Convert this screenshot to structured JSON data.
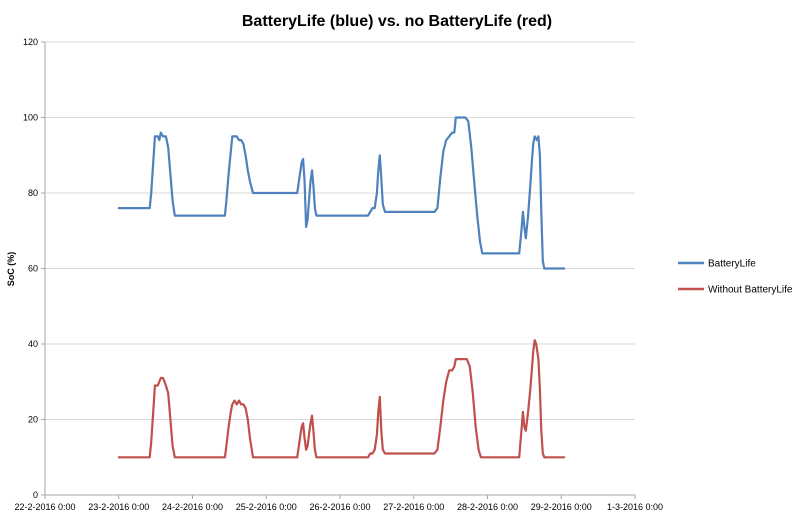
{
  "page": {
    "background": "#FFFFFF"
  },
  "chart_data": {
    "type": "line",
    "title": "BatteryLife (blue) vs. no BatteryLife (red)",
    "ylabel": "SoC (%)",
    "xlabel": "",
    "ylim": [
      0,
      120
    ],
    "y_ticks": [
      0,
      20,
      40,
      60,
      80,
      100,
      120
    ],
    "x_domain": [
      0,
      8
    ],
    "x_ticks": [
      {
        "pos": 0,
        "label": "22-2-2016 0:00"
      },
      {
        "pos": 1,
        "label": "23-2-2016 0:00"
      },
      {
        "pos": 2,
        "label": "24-2-2016 0:00"
      },
      {
        "pos": 3,
        "label": "25-2-2016 0:00"
      },
      {
        "pos": 4,
        "label": "26-2-2016 0:00"
      },
      {
        "pos": 5,
        "label": "27-2-2016 0:00"
      },
      {
        "pos": 6,
        "label": "28-2-2016 0:00"
      },
      {
        "pos": 7,
        "label": "29-2-2016 0:00"
      },
      {
        "pos": 8,
        "label": "1-3-2016 0:00"
      }
    ],
    "grid": true,
    "legend_position": "right",
    "colors": {
      "grid": "#D9D9D9",
      "axis": "#A6A6A6",
      "text": "#000000",
      "blue_series": "#4F81BD",
      "red_series": "#C0504D"
    },
    "series": [
      {
        "name": "BatteryLife",
        "color": "#4F81BD",
        "points": [
          [
            1.0,
            76
          ],
          [
            1.42,
            76
          ],
          [
            1.44,
            80
          ],
          [
            1.46,
            86
          ],
          [
            1.48,
            92
          ],
          [
            1.49,
            95
          ],
          [
            1.53,
            95
          ],
          [
            1.55,
            94
          ],
          [
            1.57,
            96
          ],
          [
            1.6,
            95
          ],
          [
            1.64,
            95
          ],
          [
            1.67,
            92
          ],
          [
            1.7,
            85
          ],
          [
            1.73,
            78
          ],
          [
            1.76,
            74
          ],
          [
            2.44,
            74
          ],
          [
            2.46,
            78
          ],
          [
            2.49,
            85
          ],
          [
            2.52,
            91
          ],
          [
            2.54,
            95
          ],
          [
            2.6,
            95
          ],
          [
            2.63,
            94
          ],
          [
            2.66,
            94
          ],
          [
            2.69,
            93
          ],
          [
            2.72,
            90
          ],
          [
            2.75,
            86
          ],
          [
            2.78,
            83
          ],
          [
            2.82,
            80
          ],
          [
            3.42,
            80
          ],
          [
            3.45,
            84
          ],
          [
            3.48,
            88
          ],
          [
            3.5,
            89
          ],
          [
            3.52,
            83
          ],
          [
            3.54,
            71
          ],
          [
            3.56,
            73
          ],
          [
            3.58,
            78
          ],
          [
            3.6,
            83
          ],
          [
            3.62,
            86
          ],
          [
            3.64,
            82
          ],
          [
            3.66,
            76
          ],
          [
            3.68,
            74
          ],
          [
            4.38,
            74
          ],
          [
            4.41,
            75
          ],
          [
            4.44,
            76
          ],
          [
            4.47,
            76
          ],
          [
            4.5,
            80
          ],
          [
            4.52,
            86
          ],
          [
            4.54,
            90
          ],
          [
            4.56,
            84
          ],
          [
            4.58,
            77
          ],
          [
            4.61,
            75
          ],
          [
            5.28,
            75
          ],
          [
            5.32,
            76
          ],
          [
            5.36,
            84
          ],
          [
            5.4,
            91
          ],
          [
            5.44,
            94
          ],
          [
            5.48,
            95
          ],
          [
            5.52,
            96
          ],
          [
            5.55,
            96
          ],
          [
            5.57,
            100
          ],
          [
            5.7,
            100
          ],
          [
            5.74,
            99
          ],
          [
            5.78,
            92
          ],
          [
            5.82,
            83
          ],
          [
            5.86,
            74
          ],
          [
            5.9,
            67
          ],
          [
            5.93,
            64
          ],
          [
            6.43,
            64
          ],
          [
            6.46,
            70
          ],
          [
            6.48,
            75
          ],
          [
            6.5,
            71
          ],
          [
            6.52,
            68
          ],
          [
            6.55,
            74
          ],
          [
            6.58,
            82
          ],
          [
            6.6,
            88
          ],
          [
            6.62,
            93
          ],
          [
            6.64,
            95
          ],
          [
            6.67,
            94
          ],
          [
            6.69,
            95
          ],
          [
            6.71,
            90
          ],
          [
            6.73,
            75
          ],
          [
            6.75,
            62
          ],
          [
            6.77,
            60
          ],
          [
            7.04,
            60
          ]
        ]
      },
      {
        "name": "Without BatteryLife",
        "color": "#C0504D",
        "points": [
          [
            1.0,
            10
          ],
          [
            1.42,
            10
          ],
          [
            1.44,
            14
          ],
          [
            1.46,
            20
          ],
          [
            1.48,
            26
          ],
          [
            1.49,
            29
          ],
          [
            1.53,
            29
          ],
          [
            1.55,
            30
          ],
          [
            1.57,
            31
          ],
          [
            1.6,
            31
          ],
          [
            1.62,
            30
          ],
          [
            1.64,
            29
          ],
          [
            1.67,
            27
          ],
          [
            1.7,
            20
          ],
          [
            1.73,
            13
          ],
          [
            1.76,
            10
          ],
          [
            2.44,
            10
          ],
          [
            2.46,
            13
          ],
          [
            2.49,
            18
          ],
          [
            2.52,
            22
          ],
          [
            2.54,
            24
          ],
          [
            2.57,
            25
          ],
          [
            2.6,
            24
          ],
          [
            2.63,
            25
          ],
          [
            2.66,
            24
          ],
          [
            2.69,
            24
          ],
          [
            2.72,
            23
          ],
          [
            2.75,
            20
          ],
          [
            2.78,
            15
          ],
          [
            2.82,
            10
          ],
          [
            3.42,
            10
          ],
          [
            3.45,
            14
          ],
          [
            3.48,
            18
          ],
          [
            3.5,
            19
          ],
          [
            3.52,
            15
          ],
          [
            3.54,
            12
          ],
          [
            3.56,
            13
          ],
          [
            3.58,
            16
          ],
          [
            3.6,
            19
          ],
          [
            3.62,
            21
          ],
          [
            3.64,
            17
          ],
          [
            3.66,
            12
          ],
          [
            3.68,
            10
          ],
          [
            4.38,
            10
          ],
          [
            4.41,
            11
          ],
          [
            4.44,
            11
          ],
          [
            4.47,
            12
          ],
          [
            4.5,
            16
          ],
          [
            4.52,
            22
          ],
          [
            4.54,
            26
          ],
          [
            4.56,
            17
          ],
          [
            4.58,
            12
          ],
          [
            4.61,
            11
          ],
          [
            5.28,
            11
          ],
          [
            5.32,
            12
          ],
          [
            5.36,
            18
          ],
          [
            5.4,
            25
          ],
          [
            5.44,
            30
          ],
          [
            5.48,
            33
          ],
          [
            5.52,
            33
          ],
          [
            5.55,
            34
          ],
          [
            5.57,
            36
          ],
          [
            5.72,
            36
          ],
          [
            5.76,
            34
          ],
          [
            5.8,
            27
          ],
          [
            5.84,
            18
          ],
          [
            5.88,
            12
          ],
          [
            5.91,
            10
          ],
          [
            6.43,
            10
          ],
          [
            6.46,
            17
          ],
          [
            6.48,
            22
          ],
          [
            6.5,
            18
          ],
          [
            6.52,
            17
          ],
          [
            6.55,
            22
          ],
          [
            6.58,
            28
          ],
          [
            6.6,
            33
          ],
          [
            6.62,
            38
          ],
          [
            6.64,
            41
          ],
          [
            6.66,
            40
          ],
          [
            6.69,
            36
          ],
          [
            6.71,
            28
          ],
          [
            6.73,
            17
          ],
          [
            6.75,
            11
          ],
          [
            6.77,
            10
          ],
          [
            7.04,
            10
          ]
        ]
      }
    ]
  }
}
